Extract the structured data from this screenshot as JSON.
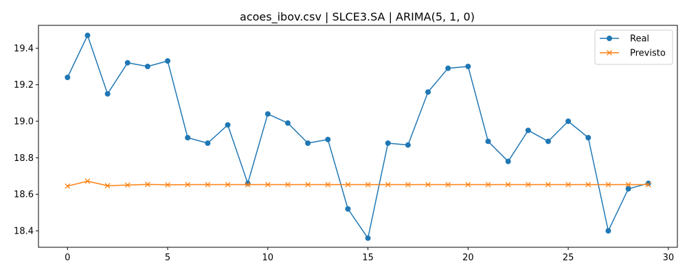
{
  "chart_data": {
    "type": "line",
    "title": "acoes_ibov.csv | SLCE3.SA | ARIMA(5, 1, 0)",
    "xlabel": "",
    "ylabel": "",
    "xlim": [
      -1.45,
      30.45
    ],
    "ylim": [
      18.31,
      19.525
    ],
    "x_ticks": [
      0,
      5,
      10,
      15,
      20,
      25,
      30
    ],
    "y_ticks": [
      18.4,
      18.6,
      18.8,
      19.0,
      19.2,
      19.4
    ],
    "grid": false,
    "legend_position": "top-right",
    "x": [
      0,
      1,
      2,
      3,
      4,
      5,
      6,
      7,
      8,
      9,
      10,
      11,
      12,
      13,
      14,
      15,
      16,
      17,
      18,
      19,
      20,
      21,
      22,
      23,
      24,
      25,
      26,
      27,
      28,
      29
    ],
    "series": [
      {
        "name": "Real",
        "color": "#1f77b4",
        "marker": "circle",
        "values": [
          19.24,
          19.47,
          19.15,
          19.32,
          19.3,
          19.33,
          18.91,
          18.88,
          18.98,
          18.66,
          19.04,
          18.99,
          18.88,
          18.9,
          18.52,
          18.36,
          18.88,
          18.87,
          19.16,
          19.29,
          19.3,
          18.89,
          18.78,
          18.95,
          18.89,
          19.0,
          18.91,
          18.4,
          18.63,
          18.66
        ]
      },
      {
        "name": "Previsto",
        "color": "#ff7f0e",
        "marker": "x",
        "values": [
          18.645,
          18.672,
          18.647,
          18.651,
          18.654,
          18.652,
          18.653,
          18.653,
          18.653,
          18.653,
          18.653,
          18.653,
          18.653,
          18.653,
          18.653,
          18.653,
          18.653,
          18.653,
          18.653,
          18.653,
          18.653,
          18.653,
          18.653,
          18.653,
          18.653,
          18.653,
          18.653,
          18.653,
          18.653,
          18.653
        ]
      }
    ]
  }
}
